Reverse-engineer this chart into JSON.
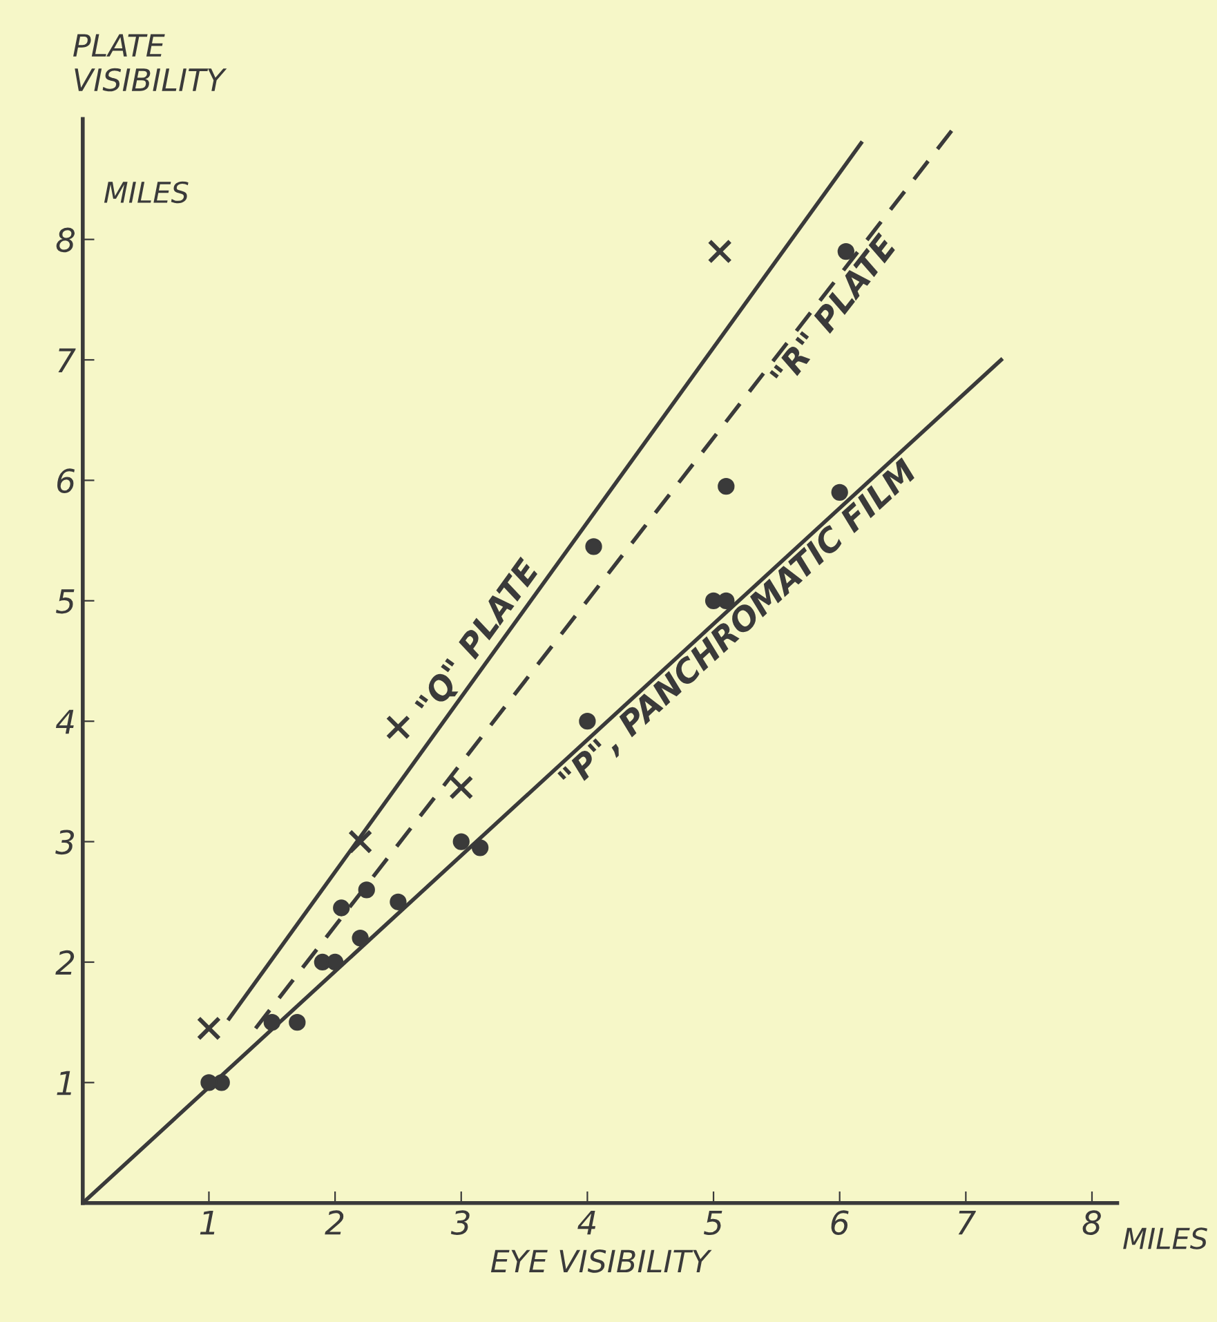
{
  "chart_data": {
    "type": "scatter",
    "xlabel": "EYE VISIBILITY",
    "ylabel": "PLATE\nVISIBILITY",
    "annotations": [
      "MILES",
      "MILES"
    ],
    "xlim": [
      0,
      8.2
    ],
    "ylim": [
      0,
      9.0
    ],
    "xticks": [
      1,
      2,
      3,
      4,
      5,
      6,
      7,
      8
    ],
    "yticks": [
      1,
      2,
      3,
      4,
      5,
      6,
      7,
      8
    ],
    "grid": false,
    "legend": false,
    "series": [
      {
        "type": "line",
        "name": "\"Q\" PLATE",
        "color": "#3a3a3a",
        "line_style": "solid",
        "marker": "none",
        "x": [
          1.16,
          6.17
        ],
        "values": [
          1.53,
          8.8
        ]
      },
      {
        "type": "line",
        "name": "\"R\" PLATE",
        "color": "#3a3a3a",
        "line_style": "dashed",
        "marker": "none",
        "x": [
          1.37,
          6.96
        ],
        "values": [
          1.45,
          9.0
        ]
      },
      {
        "type": "line",
        "name": "\"P\", PANCHROMATIC FILM",
        "color": "#3a3a3a",
        "line_style": "solid",
        "marker": "none",
        "x": [
          0,
          7.28
        ],
        "values": [
          0,
          7.0
        ]
      },
      {
        "color": "#3a3a3a",
        "marker": "cross",
        "x": [
          1.0,
          2.2,
          2.5,
          3.0,
          5.05
        ],
        "values": [
          1.45,
          3.0,
          3.95,
          3.45,
          7.9
        ]
      },
      {
        "color": "#3a3a3a",
        "marker": "circle",
        "x": [
          1.1,
          1.7,
          1.9,
          2.05,
          2.25,
          3.15,
          4.05,
          5.1,
          6.05
        ],
        "values": [
          1.0,
          1.5,
          2.0,
          2.45,
          2.6,
          2.95,
          5.45,
          5.95,
          7.9
        ]
      },
      {
        "color": "#3a3a3a",
        "marker": "circle",
        "x": [
          1.0,
          1.5,
          2.0,
          2.2,
          2.5,
          3.0,
          4.0,
          5.0,
          5.1,
          6.0
        ],
        "values": [
          1.0,
          1.5,
          2.0,
          2.2,
          2.5,
          3.0,
          4.0,
          5.0,
          5.0,
          5.9
        ]
      }
    ]
  }
}
